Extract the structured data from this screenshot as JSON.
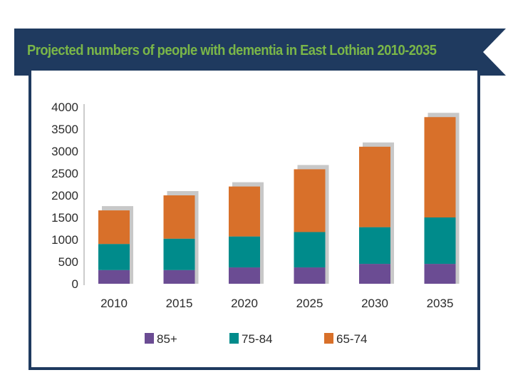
{
  "title": "Projected numbers of people with dementia in East Lothian 2010-2035",
  "colors": {
    "banner": "#1f3a5f",
    "title": "#7ab648",
    "frame": "#1f3a5f",
    "shadow": "#c8c8c8"
  },
  "chart_data": {
    "type": "bar",
    "stacked": true,
    "title": "Projected numbers of people with dementia in East Lothian 2010-2035",
    "xlabel": "",
    "ylabel": "",
    "categories": [
      "2010",
      "2015",
      "2020",
      "2025",
      "2030",
      "2035"
    ],
    "ylim": [
      0,
      4000
    ],
    "yticks": [
      0,
      500,
      1000,
      1500,
      2000,
      2500,
      3000,
      3500,
      4000
    ],
    "series": [
      {
        "name": "85+",
        "color": "#6b4c93",
        "values": [
          310,
          310,
          370,
          370,
          450,
          450
        ]
      },
      {
        "name": "75-84",
        "color": "#008b8b",
        "values": [
          590,
          710,
          700,
          800,
          830,
          1050
        ]
      },
      {
        "name": "65-74",
        "color": "#d8702a",
        "values": [
          760,
          980,
          1130,
          1420,
          1820,
          2270
        ]
      }
    ],
    "legend_position": "bottom",
    "grid": false
  }
}
